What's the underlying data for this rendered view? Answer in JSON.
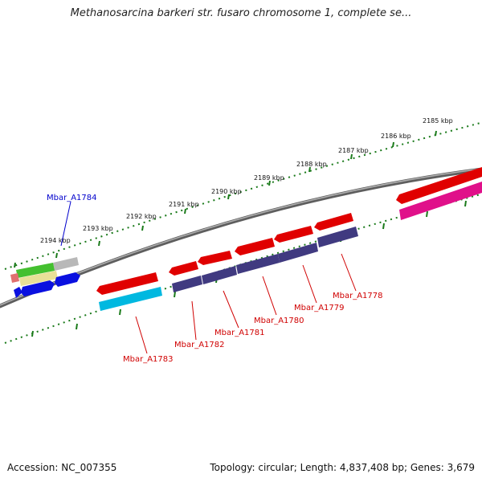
{
  "title": "Methanosarcina barkeri str. fusaro chromosome 1, complete se...",
  "accession": "Accession: NC_007355",
  "topology": "Topology: circular; Length: 4,837,408 bp; Genes: 3,679",
  "ticks": [
    "2185 kbp",
    "2186 kbp",
    "2187 kbp",
    "2188 kbp",
    "2189 kbp",
    "2190 kbp",
    "2191 kbp",
    "2192 kbp",
    "2193 kbp",
    "2194 kbp"
  ],
  "genes": [
    {
      "name": "Mbar_A1784",
      "color": "#0000cc"
    },
    {
      "name": "Mbar_A1783",
      "color": "#d00000"
    },
    {
      "name": "Mbar_A1782",
      "color": "#d00000"
    },
    {
      "name": "Mbar_A1781",
      "color": "#d00000"
    },
    {
      "name": "Mbar_A1780",
      "color": "#d00000"
    },
    {
      "name": "Mbar_A1779",
      "color": "#d00000"
    },
    {
      "name": "Mbar_A1778",
      "color": "#d00000"
    }
  ],
  "colors": {
    "backbone": "#777777",
    "tick": "#1a7a1a",
    "cds": "#e00000",
    "gene_purple": "#403a80",
    "gene_cyan": "#00b8e0",
    "gene_pink": "#e0108a",
    "gene_blue": "#0a10e0",
    "gene_green": "#44c030",
    "gene_gray": "#b8b8b8",
    "gene_yellow": "#e8e098",
    "gene_salmon": "#e07070"
  }
}
